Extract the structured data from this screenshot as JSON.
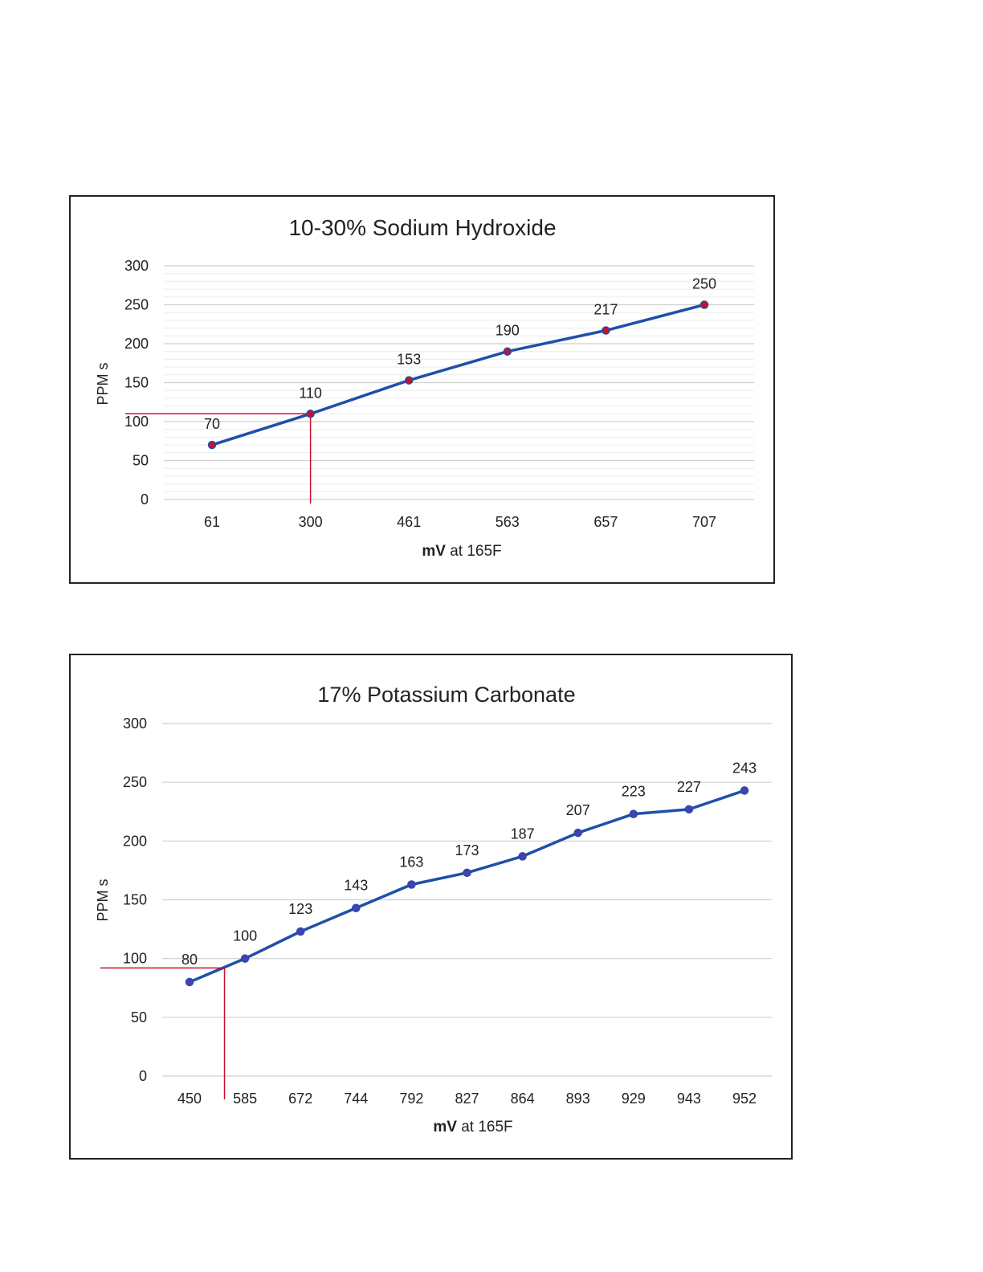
{
  "chart_data": [
    {
      "type": "line",
      "title": "10-30% Sodium Hydroxide",
      "xlabel_bold": "mV",
      "xlabel_rest": " at 165F",
      "ylabel": "PPM s",
      "categories": [
        "61",
        "300",
        "461",
        "563",
        "657",
        "707"
      ],
      "series": [
        {
          "values": [
            70,
            110,
            153,
            190,
            217,
            250
          ]
        }
      ],
      "ylim": [
        0,
        300
      ],
      "yticks": [
        0,
        50,
        100,
        150,
        200,
        250,
        300
      ],
      "grid": true,
      "marker_color": "#c8102e",
      "line_color": "#1f4fa8",
      "reference_lines": {
        "y": 110,
        "x_category": "300",
        "color": "#c8102e"
      }
    },
    {
      "type": "line",
      "title": "17% Potassium Carbonate",
      "xlabel_bold": "mV",
      "xlabel_rest": " at 165F",
      "ylabel": "PPM s",
      "categories": [
        "450",
        "585",
        "672",
        "744",
        "792",
        "827",
        "864",
        "893",
        "929",
        "943",
        "952"
      ],
      "series": [
        {
          "values": [
            80,
            100,
            123,
            143,
            163,
            173,
            187,
            207,
            223,
            227,
            243
          ]
        }
      ],
      "ylim": [
        0,
        300
      ],
      "yticks": [
        0,
        50,
        100,
        150,
        200,
        250,
        300
      ],
      "grid": true,
      "marker_color": "#4a3fb0",
      "line_color": "#1f4fa8",
      "reference_lines": {
        "y": 92,
        "x_category_index": 0.63,
        "color": "#c8102e"
      }
    }
  ]
}
